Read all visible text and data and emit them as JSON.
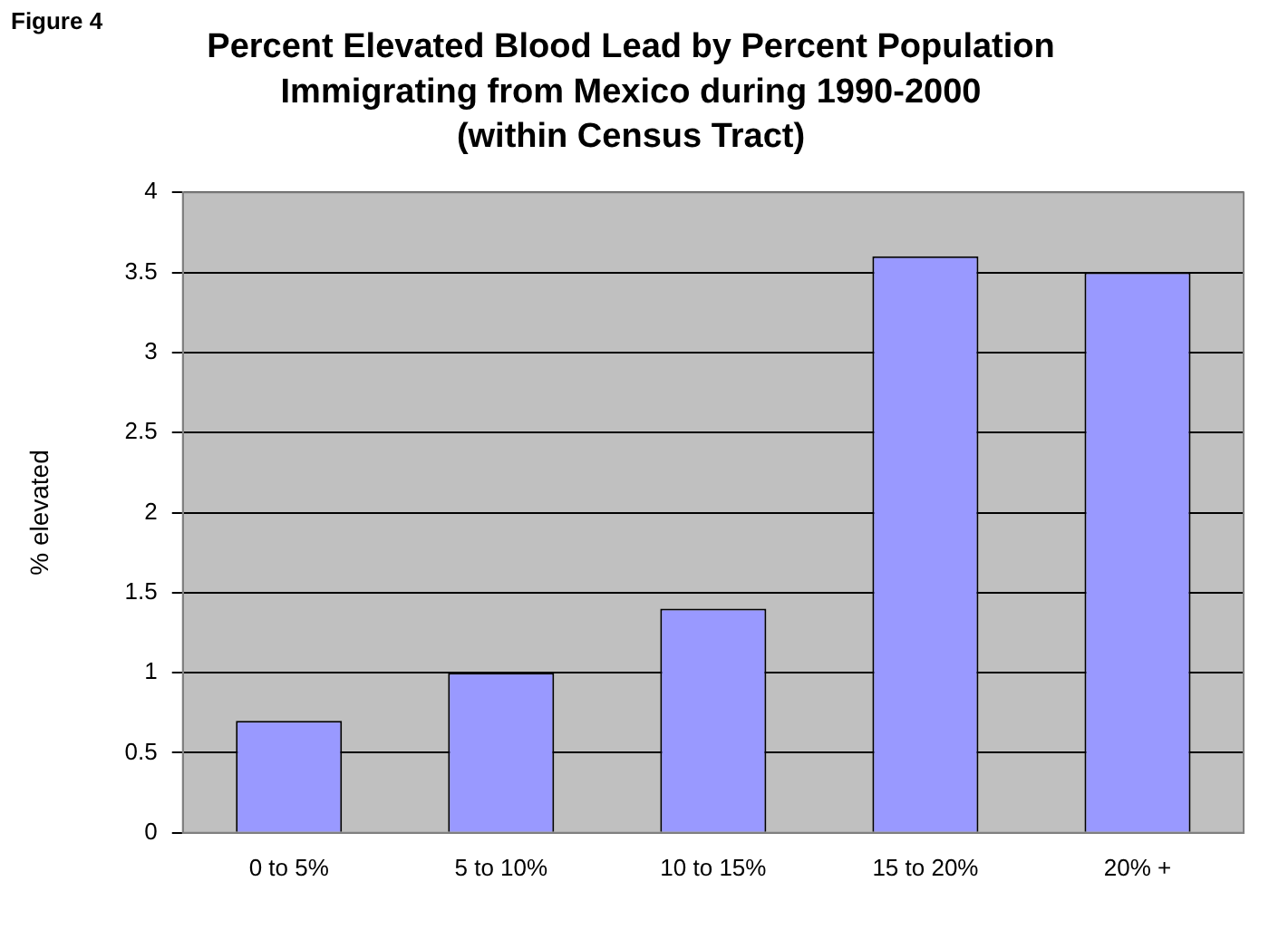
{
  "chart_data": {
    "type": "bar",
    "title": "Percent Elevated Blood Lead by Percent Population\nImmigrating from Mexico during 1990-2000\n(within Census Tract)",
    "ylabel": "% elevated",
    "annotations": [
      "Figure 4"
    ],
    "categories": [
      "0 to 5%",
      "5 to 10%",
      "10 to 15%",
      "15 to 20%",
      "20% +"
    ],
    "values": [
      0.7,
      1.0,
      1.4,
      3.6,
      3.5
    ],
    "color": "#9999ff",
    "ylim": [
      0,
      4
    ],
    "yticks": [
      0,
      0.5,
      1,
      1.5,
      2,
      2.5,
      3,
      3.5,
      4
    ],
    "grid": "y",
    "legend": false
  }
}
